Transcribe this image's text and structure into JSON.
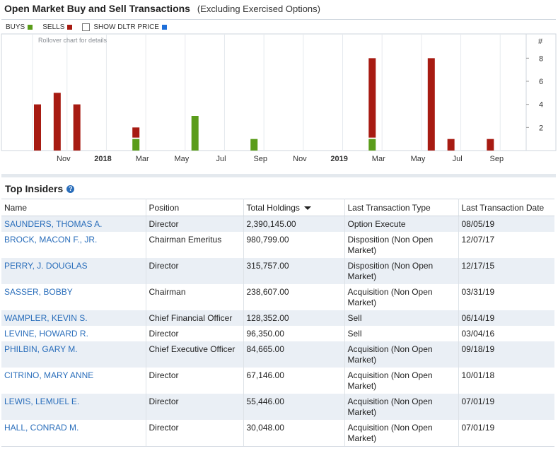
{
  "header": {
    "title": "Open Market Buy and Sell Transactions",
    "subtitle": "(Excluding Exercised Options)"
  },
  "legend": {
    "buys_label": "BUYS",
    "sells_label": "SELLS",
    "dltr_label": "SHOW DLTR PRICE",
    "colors": {
      "buys": "#5a9c1a",
      "sells": "#a71b12",
      "dltr": "#1e6fd9"
    }
  },
  "chart_data": {
    "type": "bar",
    "stacked": true,
    "note": "Rollover chart for details",
    "y_axis_label": "#",
    "y_ticks": [
      2,
      4,
      6,
      8
    ],
    "ylim": [
      0,
      9
    ],
    "xlim": [
      0,
      25
    ],
    "x_ticks": [
      {
        "label": "Nov",
        "x": 1,
        "bold": false
      },
      {
        "label": "2018",
        "x": 3,
        "bold": true
      },
      {
        "label": "Mar",
        "x": 5,
        "bold": false
      },
      {
        "label": "May",
        "x": 7,
        "bold": false
      },
      {
        "label": "Jul",
        "x": 9,
        "bold": false
      },
      {
        "label": "Sep",
        "x": 11,
        "bold": false
      },
      {
        "label": "Nov",
        "x": 13,
        "bold": false
      },
      {
        "label": "2019",
        "x": 15,
        "bold": true
      },
      {
        "label": "Mar",
        "x": 17,
        "bold": false
      },
      {
        "label": "May",
        "x": 19,
        "bold": false
      },
      {
        "label": "Jul",
        "x": 21,
        "bold": false
      },
      {
        "label": "Sep",
        "x": 23,
        "bold": false
      }
    ],
    "bars": [
      {
        "x": 0,
        "buys": 0,
        "sells": 4
      },
      {
        "x": 1,
        "buys": 0,
        "sells": 5
      },
      {
        "x": 2,
        "buys": 0,
        "sells": 4
      },
      {
        "x": 5,
        "buys": 1,
        "sells": 1
      },
      {
        "x": 8,
        "buys": 3,
        "sells": 0
      },
      {
        "x": 11,
        "buys": 1,
        "sells": 0
      },
      {
        "x": 17,
        "buys": 1,
        "sells": 7
      },
      {
        "x": 20,
        "buys": 0,
        "sells": 8
      },
      {
        "x": 21,
        "buys": 0,
        "sells": 1
      },
      {
        "x": 23,
        "buys": 0,
        "sells": 1
      }
    ],
    "grid": true
  },
  "insiders": {
    "title": "Top Insiders",
    "columns": [
      "Name",
      "Position",
      "Total Holdings",
      "Last Transaction Type",
      "Last Transaction Date"
    ],
    "rows": [
      {
        "name": "SAUNDERS, THOMAS A.",
        "position": "Director",
        "holdings": "2,390,145.00",
        "type": "Option Execute",
        "date": "08/05/19"
      },
      {
        "name": "BROCK, MACON F., JR.",
        "position": "Chairman Emeritus",
        "holdings": "980,799.00",
        "type": "Disposition (Non Open Market)",
        "date": "12/07/17"
      },
      {
        "name": "PERRY, J. DOUGLAS",
        "position": "Director",
        "holdings": "315,757.00",
        "type": "Disposition (Non Open Market)",
        "date": "12/17/15"
      },
      {
        "name": "SASSER, BOBBY",
        "position": "Chairman",
        "holdings": "238,607.00",
        "type": "Acquisition (Non Open Market)",
        "date": "03/31/19"
      },
      {
        "name": "WAMPLER, KEVIN S.",
        "position": "Chief Financial Officer",
        "holdings": "128,352.00",
        "type": "Sell",
        "date": "06/14/19"
      },
      {
        "name": "LEVINE, HOWARD R.",
        "position": "Director",
        "holdings": "96,350.00",
        "type": "Sell",
        "date": "03/04/16"
      },
      {
        "name": "PHILBIN, GARY M.",
        "position": "Chief Executive Officer",
        "holdings": "84,665.00",
        "type": "Acquisition (Non Open Market)",
        "date": "09/18/19"
      },
      {
        "name": "CITRINO, MARY ANNE",
        "position": "Director",
        "holdings": "67,146.00",
        "type": "Acquisition (Non Open Market)",
        "date": "10/01/18"
      },
      {
        "name": "LEWIS, LEMUEL E.",
        "position": "Director",
        "holdings": "55,446.00",
        "type": "Acquisition (Non Open Market)",
        "date": "07/01/19"
      },
      {
        "name": "HALL, CONRAD M.",
        "position": "Director",
        "holdings": "30,048.00",
        "type": "Acquisition (Non Open Market)",
        "date": "07/01/19"
      }
    ]
  }
}
